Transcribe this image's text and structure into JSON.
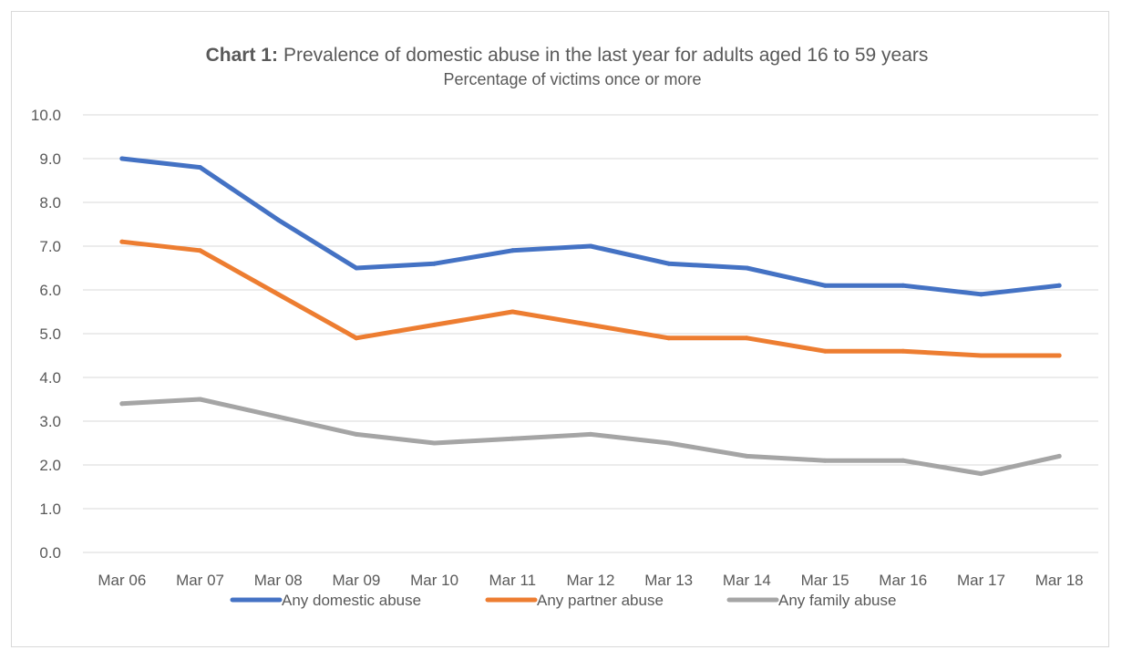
{
  "chart_data": {
    "type": "line",
    "title_prefix": "Chart 1:",
    "title": "Prevalence of domestic abuse in the last year for adults aged 16 to 59 years",
    "subtitle": "Percentage of victims once or more",
    "xlabel": "",
    "ylabel": "",
    "ylim": [
      0,
      10
    ],
    "yticks": [
      "0.0",
      "1.0",
      "2.0",
      "3.0",
      "4.0",
      "5.0",
      "6.0",
      "7.0",
      "8.0",
      "9.0",
      "10.0"
    ],
    "grid": true,
    "legend_position": "bottom",
    "categories": [
      "Mar 06",
      "Mar 07",
      "Mar 08",
      "Mar 09",
      "Mar 10",
      "Mar 11",
      "Mar 12",
      "Mar 13",
      "Mar 14",
      "Mar 15",
      "Mar 16",
      "Mar 17",
      "Mar 18"
    ],
    "series": [
      {
        "name": "Any domestic abuse",
        "color": "#4472c4",
        "values": [
          9.0,
          8.8,
          7.6,
          6.5,
          6.6,
          6.9,
          7.0,
          6.6,
          6.5,
          6.1,
          6.1,
          5.9,
          6.1
        ]
      },
      {
        "name": "Any partner abuse",
        "color": "#ed7d31",
        "values": [
          7.1,
          6.9,
          5.9,
          4.9,
          5.2,
          5.5,
          5.2,
          4.9,
          4.9,
          4.6,
          4.6,
          4.5,
          4.5
        ]
      },
      {
        "name": "Any family abuse",
        "color": "#a5a5a5",
        "values": [
          3.4,
          3.5,
          3.1,
          2.7,
          2.5,
          2.6,
          2.7,
          2.5,
          2.2,
          2.1,
          2.1,
          1.8,
          2.2
        ]
      }
    ]
  }
}
